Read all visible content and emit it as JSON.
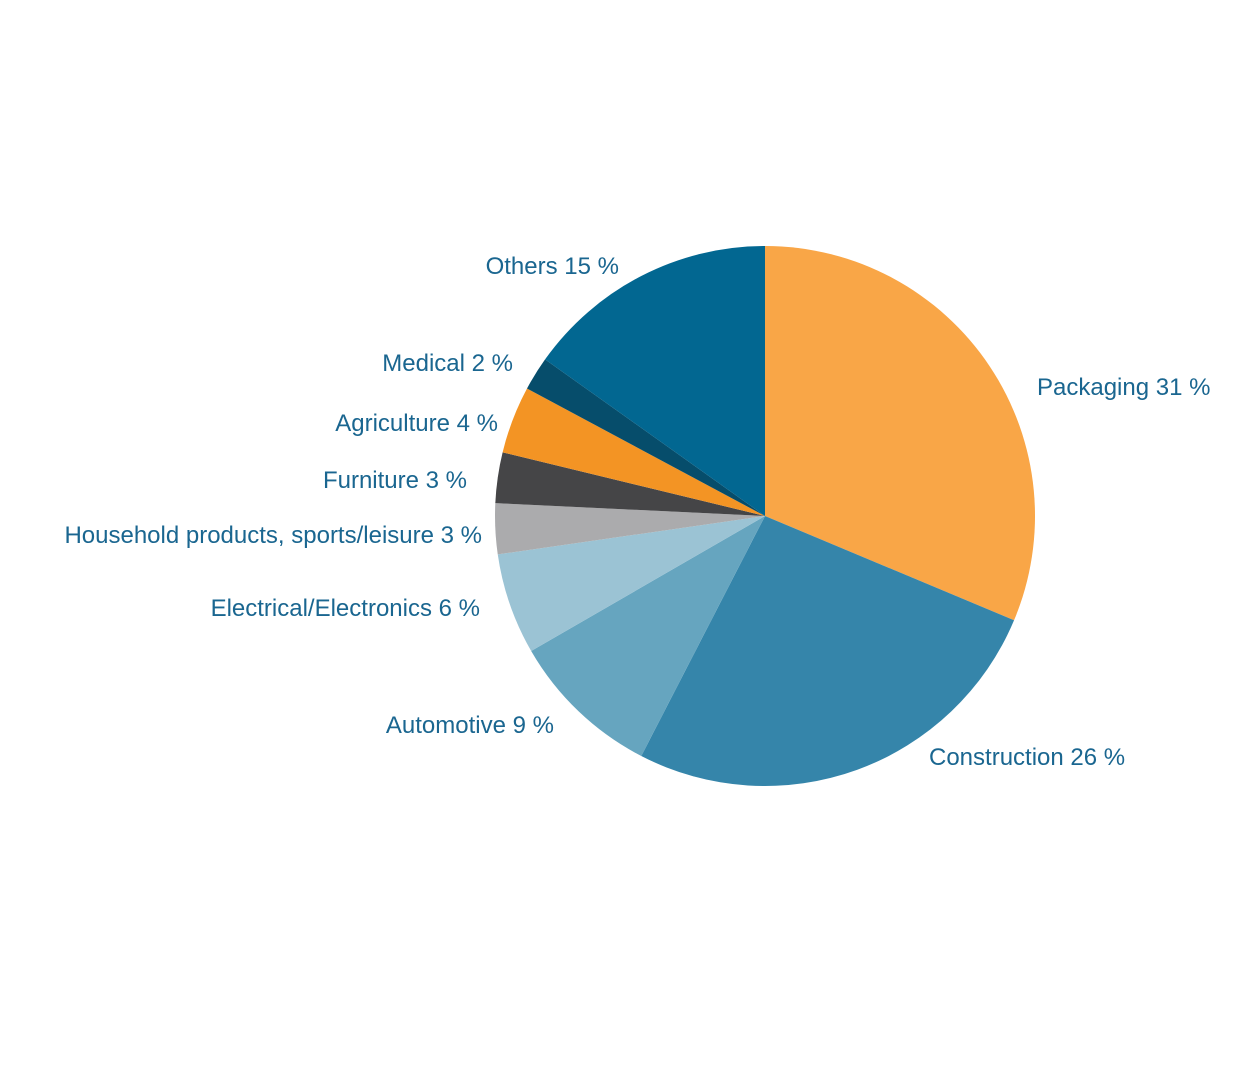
{
  "chart_data": {
    "type": "pie",
    "start_angle_deg": 0,
    "direction": "clockwise",
    "legend": "none",
    "slices": [
      {
        "label": "Packaging 31 %",
        "category": "Packaging",
        "value": 31,
        "color": "#f9a647"
      },
      {
        "label": "Construction 26 %",
        "category": "Construction",
        "value": 26,
        "color": "#3585aa"
      },
      {
        "label": "Automotive 9 %",
        "category": "Automotive",
        "value": 9,
        "color": "#66a5bf"
      },
      {
        "label": "Electrical/Electronics 6 %",
        "category": "Electrical/Electronics",
        "value": 6,
        "color": "#9bc3d4"
      },
      {
        "label": "Household products, sports/leisure 3 %",
        "category": "Household products, sports/leisure",
        "value": 3,
        "color": "#ababad"
      },
      {
        "label": "Furniture 3 %",
        "category": "Furniture",
        "value": 3,
        "color": "#454547"
      },
      {
        "label": "Agriculture 4 %",
        "category": "Agriculture",
        "value": 4,
        "color": "#f39424"
      },
      {
        "label": "Medical 2 %",
        "category": "Medical",
        "value": 2,
        "color": "#064d6b"
      },
      {
        "label": "Others 15 %",
        "category": "Others",
        "value": 15,
        "color": "#026791"
      }
    ],
    "label_color": "#1a6690"
  }
}
